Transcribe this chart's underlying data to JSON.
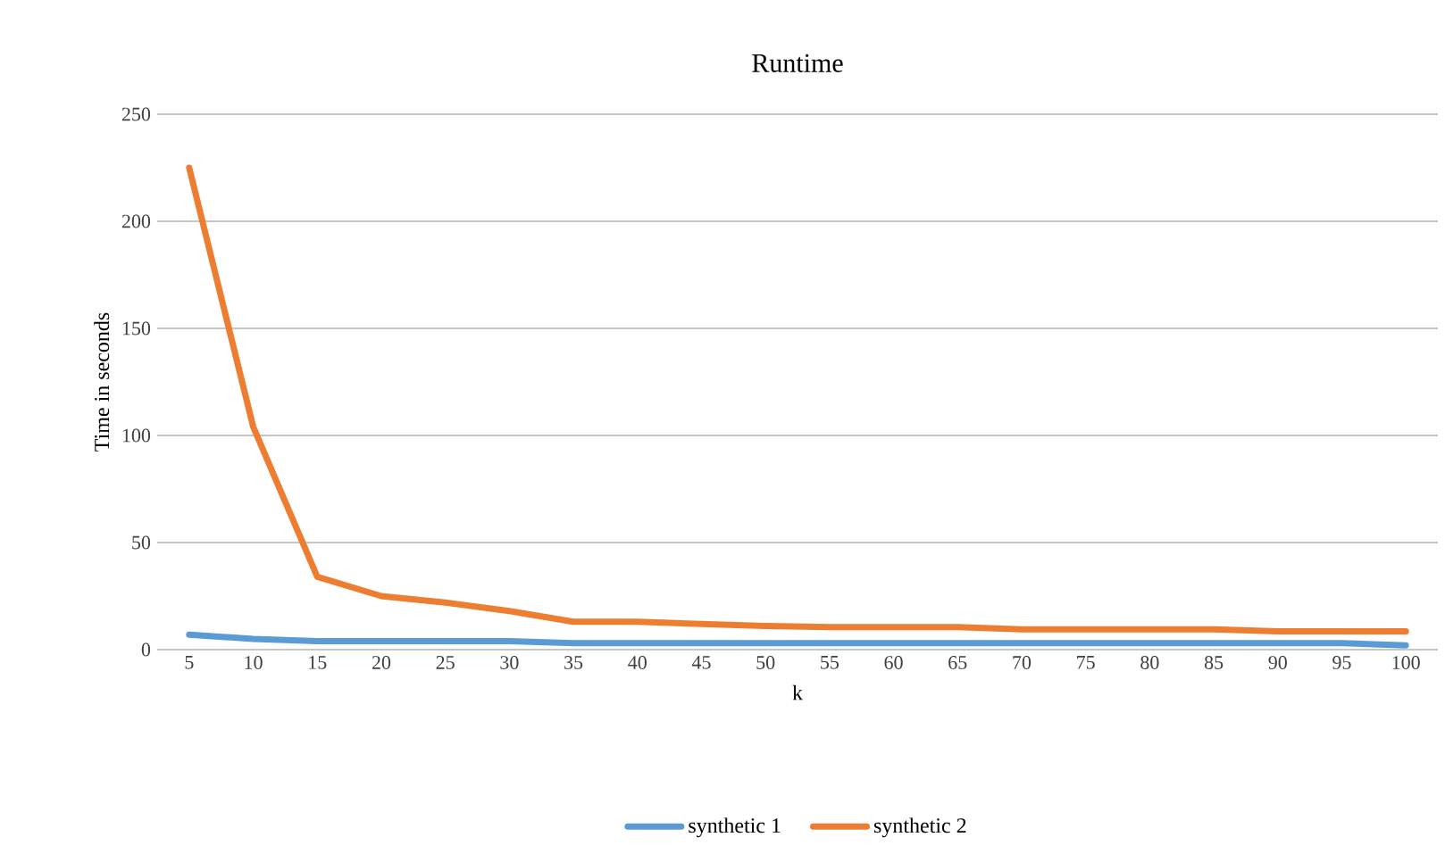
{
  "chart_data": {
    "type": "line",
    "title": "Runtime",
    "xlabel": "k",
    "ylabel": "Time in seconds",
    "categories": [
      "5",
      "10",
      "15",
      "20",
      "25",
      "30",
      "35",
      "40",
      "45",
      "50",
      "55",
      "60",
      "65",
      "70",
      "75",
      "80",
      "85",
      "90",
      "95",
      "100"
    ],
    "series": [
      {
        "name": "synthetic 1",
        "color": "#5b9bd5",
        "values": [
          7,
          5,
          4,
          4,
          4,
          4,
          3,
          3,
          3,
          3,
          3,
          3,
          3,
          3,
          3,
          3,
          3,
          3,
          3,
          2
        ]
      },
      {
        "name": "synthetic 2",
        "color": "#ed7d31",
        "values": [
          225,
          104,
          34,
          25,
          22,
          18,
          13,
          13,
          12,
          11,
          10.5,
          10.5,
          10.5,
          9.5,
          9.5,
          9.5,
          9.5,
          8.5,
          8.5,
          8.5
        ]
      }
    ],
    "ylim": [
      0,
      250
    ],
    "yticks": [
      0,
      50,
      100,
      150,
      200,
      250
    ],
    "grid": "y",
    "legend": "bottom",
    "marker": "none",
    "line_style": "solid"
  }
}
